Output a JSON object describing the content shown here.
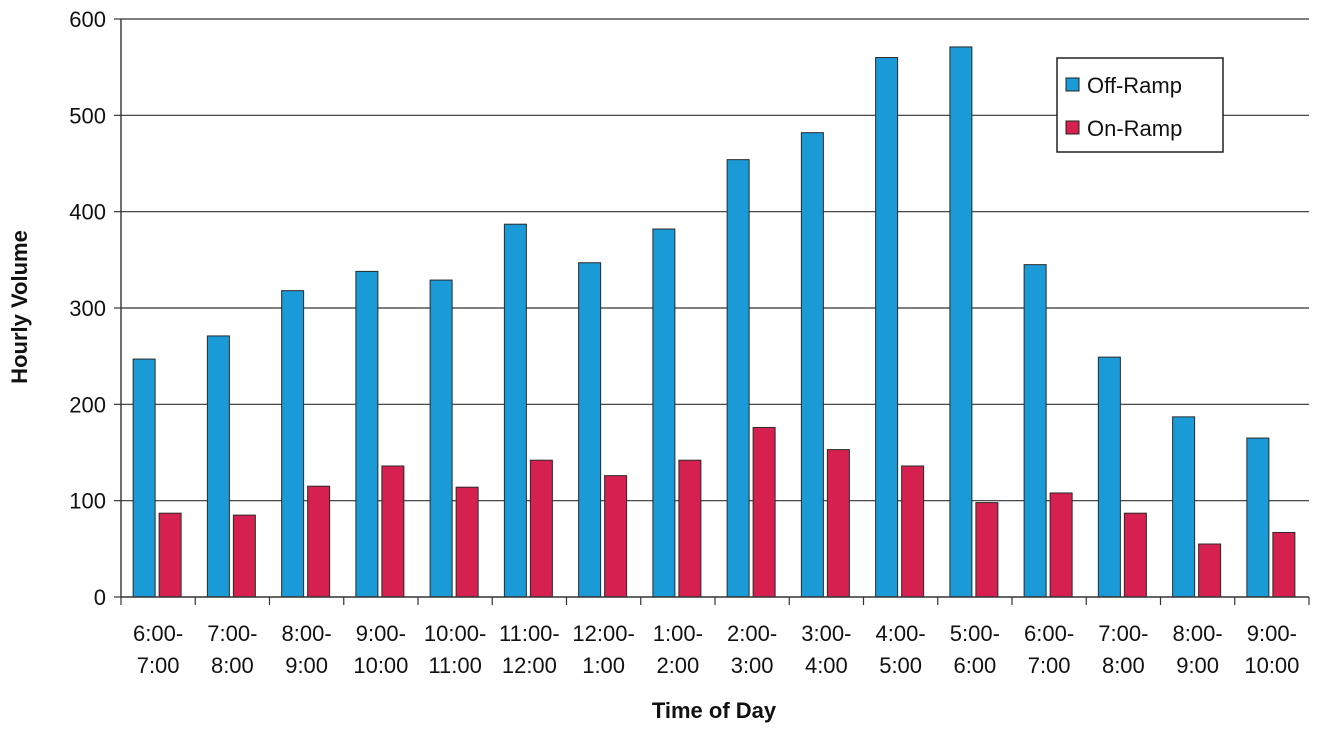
{
  "chart_data": {
    "type": "bar",
    "title": "",
    "xlabel": "Time of Day",
    "ylabel": "Hourly Volume",
    "ylim": [
      0,
      600
    ],
    "yticks": [
      0,
      100,
      200,
      300,
      400,
      500,
      600
    ],
    "grid": true,
    "legend_position": "top-right",
    "categories": [
      [
        "6:00-",
        "7:00"
      ],
      [
        "7:00-",
        "8:00"
      ],
      [
        "8:00-",
        "9:00"
      ],
      [
        "9:00-",
        "10:00"
      ],
      [
        "10:00-",
        "11:00"
      ],
      [
        "11:00-",
        "12:00"
      ],
      [
        "12:00-",
        "1:00"
      ],
      [
        "1:00-",
        "2:00"
      ],
      [
        "2:00-",
        "3:00"
      ],
      [
        "3:00-",
        "4:00"
      ],
      [
        "4:00-",
        "5:00"
      ],
      [
        "5:00-",
        "6:00"
      ],
      [
        "6:00-",
        "7:00"
      ],
      [
        "7:00-",
        "8:00"
      ],
      [
        "8:00-",
        "9:00"
      ],
      [
        "9:00-",
        "10:00"
      ]
    ],
    "series": [
      {
        "name": "Off-Ramp",
        "color": "#1a9ad6",
        "values": [
          247,
          271,
          318,
          338,
          329,
          387,
          347,
          382,
          454,
          482,
          560,
          571,
          345,
          249,
          187,
          165
        ]
      },
      {
        "name": "On-Ramp",
        "color": "#d6204f",
        "values": [
          87,
          85,
          115,
          136,
          114,
          142,
          126,
          142,
          176,
          153,
          136,
          98,
          108,
          87,
          55,
          67
        ]
      }
    ]
  }
}
